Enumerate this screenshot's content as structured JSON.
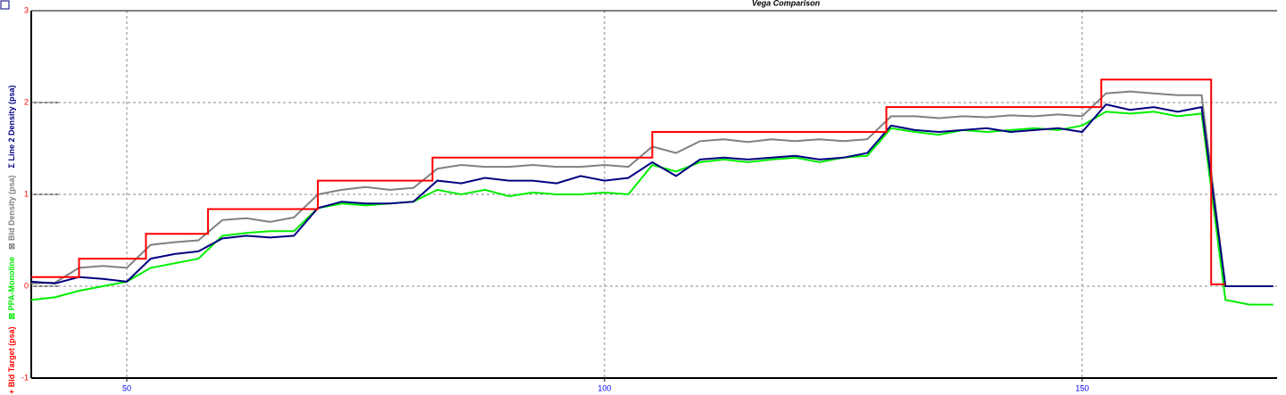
{
  "chart_data": {
    "type": "line",
    "title": "Vega Comparison",
    "x": [
      40,
      42.5,
      45,
      47.5,
      50,
      52.5,
      55,
      57.5,
      60,
      62.5,
      65,
      67.5,
      70,
      72.5,
      75,
      77.5,
      80,
      82.5,
      85,
      87.5,
      90,
      92.5,
      95,
      97.5,
      100,
      102.5,
      105,
      107.5,
      110,
      112.5,
      115,
      117.5,
      120,
      122.5,
      125,
      127.5,
      130,
      132.5,
      135,
      137.5,
      140,
      142.5,
      145,
      147.5,
      150,
      152.5,
      155,
      157.5,
      160,
      162.5,
      165,
      167.5,
      170
    ],
    "series": [
      {
        "name": "+ Bld Target (psa)",
        "color": "#ff0000",
        "x": [
          40,
          45,
          45,
          52,
          52,
          58.5,
          58.5,
          70,
          70,
          82,
          82,
          105,
          105,
          129.5,
          129.5,
          152,
          152,
          163.5,
          163.5,
          165
        ],
        "values": [
          0.1,
          0.1,
          0.3,
          0.3,
          0.57,
          0.57,
          0.84,
          0.84,
          1.15,
          1.15,
          1.4,
          1.4,
          1.68,
          1.68,
          1.95,
          1.95,
          2.25,
          2.25,
          0.02,
          0.02
        ]
      },
      {
        "name": "⊠ PPA-Monoline",
        "color": "#00ee00",
        "values": [
          -0.15,
          -0.12,
          -0.05,
          0.0,
          0.05,
          0.2,
          0.25,
          0.3,
          0.55,
          0.58,
          0.6,
          0.6,
          0.85,
          0.9,
          0.88,
          0.9,
          0.92,
          1.05,
          1.0,
          1.05,
          0.98,
          1.02,
          1.0,
          1.0,
          1.02,
          1.0,
          1.32,
          1.25,
          1.35,
          1.38,
          1.35,
          1.38,
          1.4,
          1.35,
          1.4,
          1.42,
          1.72,
          1.68,
          1.65,
          1.7,
          1.68,
          1.7,
          1.72,
          1.7,
          1.75,
          1.9,
          1.88,
          1.9,
          1.85,
          1.88,
          -0.15,
          -0.2,
          -0.2
        ]
      },
      {
        "name": "⊠ Bld Density (psa)",
        "color": "#808080",
        "values": [
          0.03,
          0.04,
          0.2,
          0.22,
          0.2,
          0.45,
          0.48,
          0.5,
          0.72,
          0.74,
          0.7,
          0.75,
          1.0,
          1.05,
          1.08,
          1.05,
          1.07,
          1.28,
          1.32,
          1.3,
          1.3,
          1.32,
          1.3,
          1.3,
          1.32,
          1.3,
          1.52,
          1.45,
          1.58,
          1.6,
          1.57,
          1.6,
          1.58,
          1.6,
          1.58,
          1.6,
          1.85,
          1.85,
          1.83,
          1.85,
          1.84,
          1.86,
          1.85,
          1.87,
          1.85,
          2.1,
          2.12,
          2.1,
          2.08,
          2.08,
          0.0,
          0.0,
          0.0
        ]
      },
      {
        "name": "Σ Line 2 Density (psa)",
        "color": "#000080",
        "values": [
          0.05,
          0.03,
          0.1,
          0.08,
          0.05,
          0.3,
          0.35,
          0.38,
          0.52,
          0.55,
          0.53,
          0.55,
          0.85,
          0.92,
          0.9,
          0.9,
          0.92,
          1.15,
          1.12,
          1.18,
          1.15,
          1.15,
          1.12,
          1.2,
          1.15,
          1.18,
          1.35,
          1.2,
          1.38,
          1.4,
          1.38,
          1.4,
          1.42,
          1.38,
          1.4,
          1.45,
          1.75,
          1.7,
          1.68,
          1.7,
          1.72,
          1.68,
          1.7,
          1.72,
          1.68,
          1.98,
          1.92,
          1.95,
          1.9,
          1.95,
          0.0,
          0.0,
          0.0
        ]
      }
    ],
    "xlim": [
      40,
      170.4
    ],
    "xticks": [
      50,
      100,
      150
    ],
    "ylim": [
      -1,
      3
    ],
    "yticks": [
      -1,
      0,
      1,
      2,
      3
    ],
    "grid": true
  }
}
